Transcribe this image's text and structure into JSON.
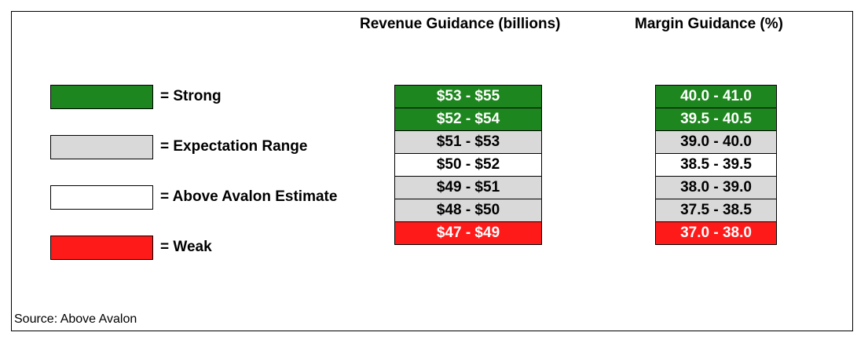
{
  "headers": {
    "revenue": "Revenue Guidance (billions)",
    "margin": "Margin Guidance (%)"
  },
  "legend": [
    {
      "label": "= Strong",
      "color": "#1e861e"
    },
    {
      "label": "= Expectation Range",
      "color": "#d9d9d9"
    },
    {
      "label": "= Above Avalon Estimate",
      "color": "#ffffff"
    },
    {
      "label": "= Weak",
      "color": "#ff1a1a"
    }
  ],
  "revenue_rows": [
    {
      "value": "$53 - $55",
      "category": "strong"
    },
    {
      "value": "$52 - $54",
      "category": "strong"
    },
    {
      "value": "$51 - $53",
      "category": "exp"
    },
    {
      "value": "$50 - $52",
      "category": "above"
    },
    {
      "value": "$49 - $51",
      "category": "exp"
    },
    {
      "value": "$48 - $50",
      "category": "exp"
    },
    {
      "value": "$47 - $49",
      "category": "weak"
    }
  ],
  "margin_rows": [
    {
      "value": "40.0 - 41.0",
      "category": "strong"
    },
    {
      "value": "39.5 - 40.5",
      "category": "strong"
    },
    {
      "value": "39.0 - 40.0",
      "category": "exp"
    },
    {
      "value": "38.5 - 39.5",
      "category": "above"
    },
    {
      "value": "38.0 - 39.0",
      "category": "exp"
    },
    {
      "value": "37.5 - 38.5",
      "category": "exp"
    },
    {
      "value": "37.0 - 38.0",
      "category": "weak"
    }
  ],
  "source": "Source: Above Avalon"
}
